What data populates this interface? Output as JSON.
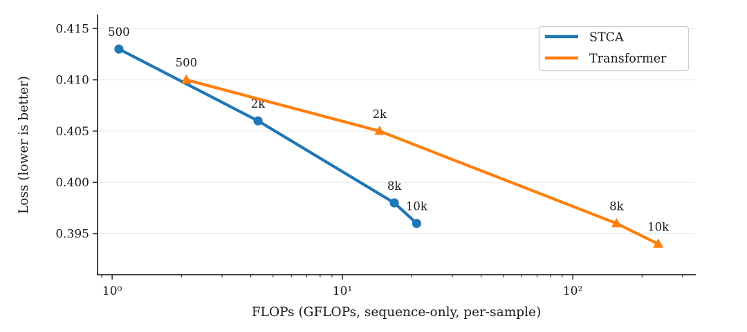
{
  "chart_data": {
    "type": "line",
    "title": "",
    "xlabel": "FLOPs (GFLOPs, sequence-only, per-sample)",
    "ylabel": "Loss (lower is better)",
    "x_scale": "log",
    "xlim": [
      0.864,
      340
    ],
    "ylim": [
      0.391,
      0.4163
    ],
    "x_major_ticks": [
      1,
      10,
      100
    ],
    "x_major_tick_labels": [
      "10⁰",
      "10¹",
      "10²"
    ],
    "y_ticks": [
      0.395,
      0.4,
      0.405,
      0.41,
      0.415
    ],
    "y_tick_labels": [
      "0.395",
      "0.400",
      "0.405",
      "0.410",
      "0.415"
    ],
    "grid": "horizontal-only",
    "gridline_color": "#ebebeb",
    "legend_position": "upper-right",
    "series": [
      {
        "name": "STCA",
        "color": "#1f77b4",
        "marker": "circle",
        "x": [
          1.07,
          4.3,
          16.8,
          21.0
        ],
        "y": [
          0.413,
          0.406,
          0.398,
          0.396
        ],
        "point_labels": [
          "500",
          "2k",
          "8k",
          "10k"
        ]
      },
      {
        "name": "Transformer",
        "color": "#ff7f0e",
        "marker": "triangle",
        "x": [
          2.1,
          14.5,
          155,
          235
        ],
        "y": [
          0.41,
          0.405,
          0.396,
          0.394
        ],
        "point_labels": [
          "500",
          "2k",
          "8k",
          "10k"
        ]
      }
    ]
  }
}
